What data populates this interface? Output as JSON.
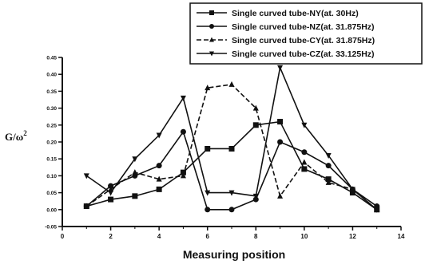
{
  "chart_data": {
    "type": "line",
    "title": "",
    "xlabel": "Measuring position",
    "ylabel": "G/ω",
    "ylabel_sup": "2",
    "xlim": [
      0,
      14
    ],
    "ylim": [
      -0.05,
      0.45
    ],
    "xticks": [
      0,
      2,
      4,
      6,
      8,
      10,
      12,
      14
    ],
    "yticks": [
      "-0.05",
      "0.00",
      "0.05",
      "0.10",
      "0.15",
      "0.20",
      "0.25",
      "0.30",
      "0.35",
      "0.40",
      "0.45"
    ],
    "grid": false,
    "legend_position": "top-right",
    "x": [
      1,
      2,
      3,
      4,
      5,
      6,
      7,
      8,
      9,
      10,
      11,
      12,
      13
    ],
    "series": [
      {
        "name": "Single curved tube-NY(at. 30Hz)",
        "marker": "square",
        "dash": "",
        "values": [
          0.01,
          0.03,
          0.04,
          0.06,
          0.11,
          0.18,
          0.18,
          0.25,
          0.26,
          0.12,
          0.09,
          0.05,
          0.0
        ]
      },
      {
        "name": "Single curved tube-NZ(at. 31.875Hz)",
        "marker": "circle",
        "dash": "",
        "values": [
          0.01,
          0.07,
          0.1,
          0.13,
          0.23,
          0.0,
          0.0,
          0.03,
          0.2,
          0.17,
          0.13,
          0.06,
          0.01
        ]
      },
      {
        "name": "Single curved tube-CY(at. 31.875Hz)",
        "marker": "triangle-up",
        "dash": "6,3",
        "values": [
          0.01,
          0.06,
          0.11,
          0.09,
          0.1,
          0.36,
          0.37,
          0.3,
          0.04,
          0.14,
          0.08,
          0.06,
          0.0
        ]
      },
      {
        "name": "Single curved tube-CZ(at. 33.125Hz)",
        "marker": "triangle-down",
        "dash": "",
        "values": [
          0.1,
          0.05,
          0.15,
          0.22,
          0.33,
          0.05,
          0.05,
          0.04,
          0.42,
          0.25,
          0.16,
          0.06,
          0.0
        ]
      }
    ]
  }
}
